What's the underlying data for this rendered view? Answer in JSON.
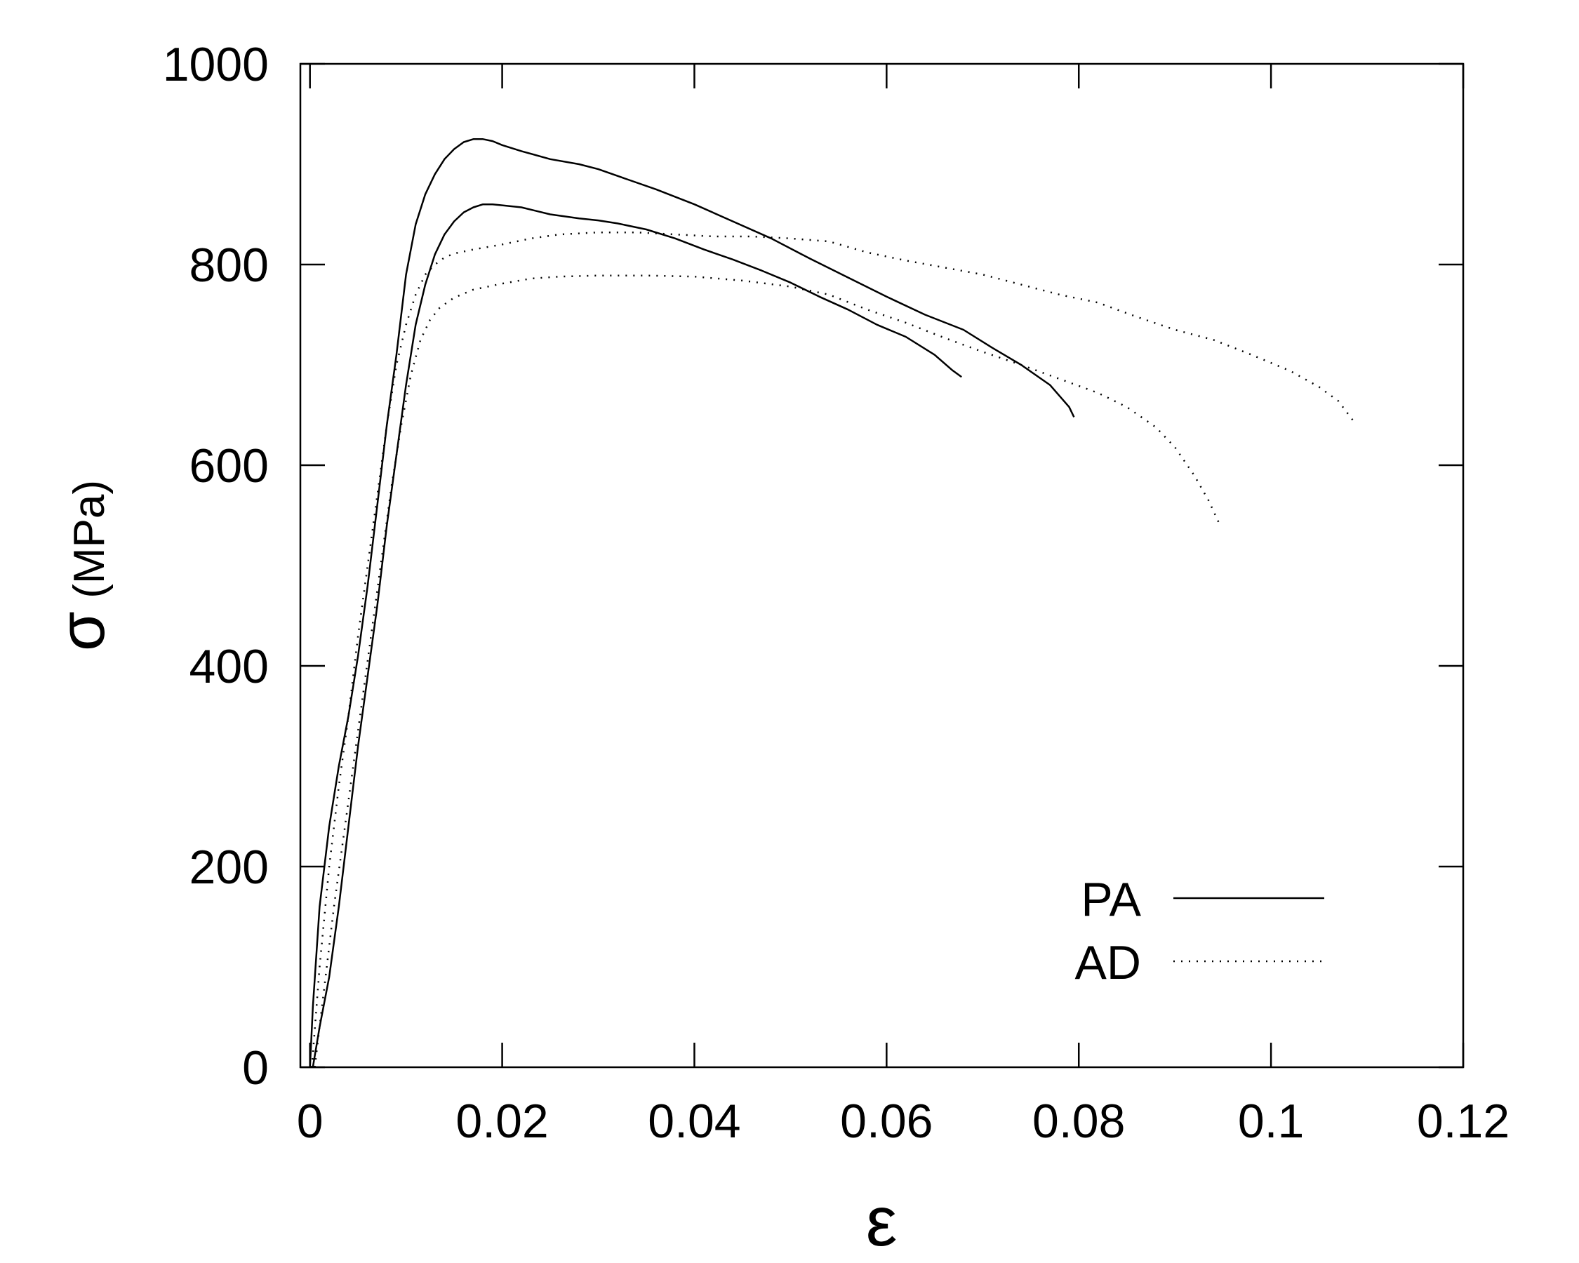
{
  "chart_data": {
    "type": "line",
    "xlabel": "ε",
    "ylabel_symbol": "σ",
    "ylabel_unit": "(MPa)",
    "xlim": [
      -0.001,
      0.12
    ],
    "ylim": [
      0,
      1000
    ],
    "xticks": [
      0,
      0.02,
      0.04,
      0.06,
      0.08,
      0.1,
      0.12
    ],
    "xtick_labels": [
      "0",
      "0.02",
      "0.04",
      "0.06",
      "0.08",
      "0.1",
      "0.12"
    ],
    "yticks": [
      0,
      200,
      400,
      600,
      800,
      1000
    ],
    "ytick_labels": [
      "0",
      "200",
      "400",
      "600",
      "800",
      "1000"
    ],
    "grid": false,
    "legend_position": "bottom-right",
    "legend": [
      {
        "label": "PA",
        "style": "solid"
      },
      {
        "label": "AD",
        "style": "dotted"
      }
    ],
    "series": [
      {
        "legend": "PA",
        "style": "solid",
        "points": [
          [
            0.0,
            0
          ],
          [
            0.0003,
            60
          ],
          [
            0.001,
            160
          ],
          [
            0.002,
            240
          ],
          [
            0.003,
            300
          ],
          [
            0.004,
            350
          ],
          [
            0.005,
            410
          ],
          [
            0.006,
            480
          ],
          [
            0.007,
            560
          ],
          [
            0.008,
            640
          ],
          [
            0.009,
            710
          ],
          [
            0.01,
            790
          ],
          [
            0.011,
            840
          ],
          [
            0.012,
            870
          ],
          [
            0.013,
            890
          ],
          [
            0.014,
            905
          ],
          [
            0.015,
            915
          ],
          [
            0.016,
            922
          ],
          [
            0.017,
            925
          ],
          [
            0.018,
            925
          ],
          [
            0.019,
            923
          ],
          [
            0.02,
            919
          ],
          [
            0.022,
            913
          ],
          [
            0.025,
            905
          ],
          [
            0.028,
            900
          ],
          [
            0.03,
            895
          ],
          [
            0.033,
            885
          ],
          [
            0.036,
            875
          ],
          [
            0.04,
            860
          ],
          [
            0.044,
            843
          ],
          [
            0.048,
            826
          ],
          [
            0.052,
            806
          ],
          [
            0.056,
            787
          ],
          [
            0.06,
            768
          ],
          [
            0.064,
            750
          ],
          [
            0.068,
            735
          ],
          [
            0.071,
            717
          ],
          [
            0.074,
            700
          ],
          [
            0.077,
            680
          ],
          [
            0.079,
            658
          ],
          [
            0.0795,
            648
          ]
        ]
      },
      {
        "legend": "PA",
        "style": "solid",
        "points": [
          [
            0.0003,
            0
          ],
          [
            0.001,
            40
          ],
          [
            0.002,
            90
          ],
          [
            0.003,
            160
          ],
          [
            0.004,
            240
          ],
          [
            0.005,
            320
          ],
          [
            0.006,
            390
          ],
          [
            0.007,
            460
          ],
          [
            0.008,
            540
          ],
          [
            0.009,
            610
          ],
          [
            0.01,
            680
          ],
          [
            0.011,
            740
          ],
          [
            0.012,
            780
          ],
          [
            0.013,
            810
          ],
          [
            0.014,
            830
          ],
          [
            0.015,
            843
          ],
          [
            0.016,
            852
          ],
          [
            0.017,
            857
          ],
          [
            0.018,
            860
          ],
          [
            0.019,
            860
          ],
          [
            0.02,
            859
          ],
          [
            0.022,
            857
          ],
          [
            0.025,
            850
          ],
          [
            0.028,
            846
          ],
          [
            0.03,
            844
          ],
          [
            0.032,
            841
          ],
          [
            0.035,
            835
          ],
          [
            0.038,
            826
          ],
          [
            0.041,
            815
          ],
          [
            0.044,
            805
          ],
          [
            0.047,
            794
          ],
          [
            0.05,
            782
          ],
          [
            0.053,
            768
          ],
          [
            0.056,
            755
          ],
          [
            0.059,
            740
          ],
          [
            0.062,
            728
          ],
          [
            0.065,
            710
          ],
          [
            0.0668,
            695
          ],
          [
            0.0678,
            688
          ]
        ]
      },
      {
        "legend": "AD",
        "style": "dotted",
        "points": [
          [
            0.0002,
            0
          ],
          [
            0.001,
            100
          ],
          [
            0.002,
            200
          ],
          [
            0.003,
            280
          ],
          [
            0.004,
            350
          ],
          [
            0.005,
            430
          ],
          [
            0.006,
            500
          ],
          [
            0.007,
            570
          ],
          [
            0.008,
            640
          ],
          [
            0.009,
            700
          ],
          [
            0.01,
            740
          ],
          [
            0.011,
            770
          ],
          [
            0.012,
            790
          ],
          [
            0.013,
            800
          ],
          [
            0.014,
            807
          ],
          [
            0.015,
            811
          ],
          [
            0.017,
            815
          ],
          [
            0.02,
            820
          ],
          [
            0.023,
            826
          ],
          [
            0.026,
            830
          ],
          [
            0.03,
            832
          ],
          [
            0.034,
            832
          ],
          [
            0.038,
            830
          ],
          [
            0.042,
            828
          ],
          [
            0.046,
            828
          ],
          [
            0.05,
            826
          ],
          [
            0.054,
            823
          ],
          [
            0.058,
            812
          ],
          [
            0.062,
            804
          ],
          [
            0.066,
            797
          ],
          [
            0.07,
            790
          ],
          [
            0.074,
            780
          ],
          [
            0.078,
            770
          ],
          [
            0.082,
            762
          ],
          [
            0.086,
            748
          ],
          [
            0.09,
            735
          ],
          [
            0.094,
            725
          ],
          [
            0.098,
            710
          ],
          [
            0.102,
            694
          ],
          [
            0.105,
            678
          ],
          [
            0.107,
            664
          ],
          [
            0.1085,
            645
          ]
        ]
      },
      {
        "legend": "AD",
        "style": "dotted",
        "points": [
          [
            0.0005,
            0
          ],
          [
            0.0015,
            80
          ],
          [
            0.0025,
            160
          ],
          [
            0.0035,
            230
          ],
          [
            0.0045,
            300
          ],
          [
            0.0055,
            370
          ],
          [
            0.0065,
            440
          ],
          [
            0.0075,
            510
          ],
          [
            0.0085,
            580
          ],
          [
            0.0095,
            640
          ],
          [
            0.0105,
            690
          ],
          [
            0.0115,
            725
          ],
          [
            0.0125,
            745
          ],
          [
            0.0135,
            757
          ],
          [
            0.015,
            767
          ],
          [
            0.017,
            775
          ],
          [
            0.02,
            781
          ],
          [
            0.023,
            786
          ],
          [
            0.026,
            788
          ],
          [
            0.03,
            789
          ],
          [
            0.035,
            789
          ],
          [
            0.04,
            788
          ],
          [
            0.045,
            784
          ],
          [
            0.05,
            778
          ],
          [
            0.054,
            770
          ],
          [
            0.058,
            755
          ],
          [
            0.062,
            742
          ],
          [
            0.066,
            727
          ],
          [
            0.07,
            713
          ],
          [
            0.074,
            700
          ],
          [
            0.078,
            686
          ],
          [
            0.082,
            672
          ],
          [
            0.085,
            658
          ],
          [
            0.088,
            638
          ],
          [
            0.09,
            618
          ],
          [
            0.092,
            590
          ],
          [
            0.0935,
            565
          ],
          [
            0.0948,
            538
          ]
        ]
      }
    ]
  }
}
